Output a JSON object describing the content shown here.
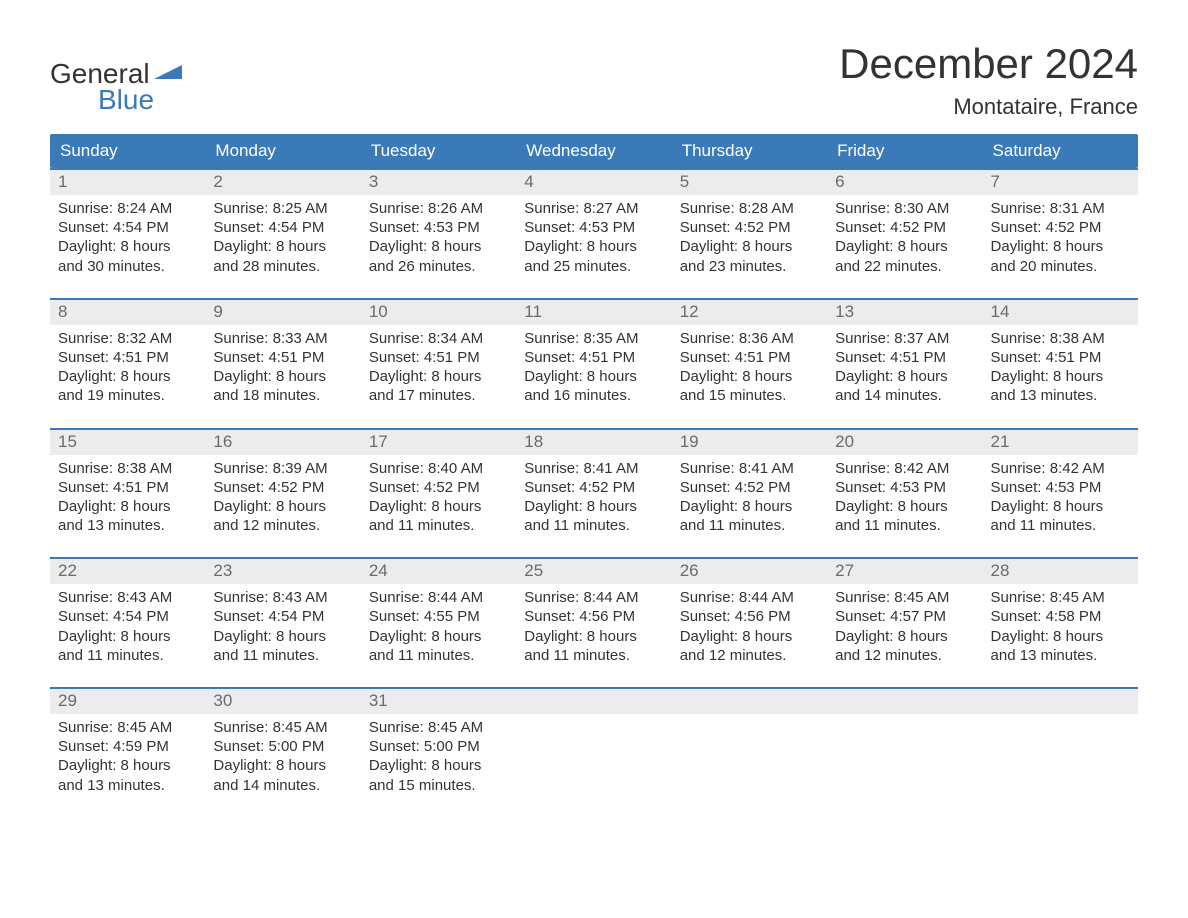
{
  "logo": {
    "text_general": "General",
    "text_blue": "Blue",
    "flag_color": "#3a7ab8"
  },
  "title": "December 2024",
  "location": "Montataire, France",
  "colors": {
    "header_bg": "#3a7ab8",
    "header_text": "#ffffff",
    "daynum_bg": "#ececec",
    "daynum_text": "#6b6b6b",
    "body_text": "#333333",
    "week_border": "#3a7ab8",
    "page_bg": "#ffffff"
  },
  "day_names": [
    "Sunday",
    "Monday",
    "Tuesday",
    "Wednesday",
    "Thursday",
    "Friday",
    "Saturday"
  ],
  "weeks": [
    [
      {
        "n": "1",
        "sunrise": "8:24 AM",
        "sunset": "4:54 PM",
        "daylight_h": "8",
        "daylight_m": "30"
      },
      {
        "n": "2",
        "sunrise": "8:25 AM",
        "sunset": "4:54 PM",
        "daylight_h": "8",
        "daylight_m": "28"
      },
      {
        "n": "3",
        "sunrise": "8:26 AM",
        "sunset": "4:53 PM",
        "daylight_h": "8",
        "daylight_m": "26"
      },
      {
        "n": "4",
        "sunrise": "8:27 AM",
        "sunset": "4:53 PM",
        "daylight_h": "8",
        "daylight_m": "25"
      },
      {
        "n": "5",
        "sunrise": "8:28 AM",
        "sunset": "4:52 PM",
        "daylight_h": "8",
        "daylight_m": "23"
      },
      {
        "n": "6",
        "sunrise": "8:30 AM",
        "sunset": "4:52 PM",
        "daylight_h": "8",
        "daylight_m": "22"
      },
      {
        "n": "7",
        "sunrise": "8:31 AM",
        "sunset": "4:52 PM",
        "daylight_h": "8",
        "daylight_m": "20"
      }
    ],
    [
      {
        "n": "8",
        "sunrise": "8:32 AM",
        "sunset": "4:51 PM",
        "daylight_h": "8",
        "daylight_m": "19"
      },
      {
        "n": "9",
        "sunrise": "8:33 AM",
        "sunset": "4:51 PM",
        "daylight_h": "8",
        "daylight_m": "18"
      },
      {
        "n": "10",
        "sunrise": "8:34 AM",
        "sunset": "4:51 PM",
        "daylight_h": "8",
        "daylight_m": "17"
      },
      {
        "n": "11",
        "sunrise": "8:35 AM",
        "sunset": "4:51 PM",
        "daylight_h": "8",
        "daylight_m": "16"
      },
      {
        "n": "12",
        "sunrise": "8:36 AM",
        "sunset": "4:51 PM",
        "daylight_h": "8",
        "daylight_m": "15"
      },
      {
        "n": "13",
        "sunrise": "8:37 AM",
        "sunset": "4:51 PM",
        "daylight_h": "8",
        "daylight_m": "14"
      },
      {
        "n": "14",
        "sunrise": "8:38 AM",
        "sunset": "4:51 PM",
        "daylight_h": "8",
        "daylight_m": "13"
      }
    ],
    [
      {
        "n": "15",
        "sunrise": "8:38 AM",
        "sunset": "4:51 PM",
        "daylight_h": "8",
        "daylight_m": "13"
      },
      {
        "n": "16",
        "sunrise": "8:39 AM",
        "sunset": "4:52 PM",
        "daylight_h": "8",
        "daylight_m": "12"
      },
      {
        "n": "17",
        "sunrise": "8:40 AM",
        "sunset": "4:52 PM",
        "daylight_h": "8",
        "daylight_m": "11"
      },
      {
        "n": "18",
        "sunrise": "8:41 AM",
        "sunset": "4:52 PM",
        "daylight_h": "8",
        "daylight_m": "11"
      },
      {
        "n": "19",
        "sunrise": "8:41 AM",
        "sunset": "4:52 PM",
        "daylight_h": "8",
        "daylight_m": "11"
      },
      {
        "n": "20",
        "sunrise": "8:42 AM",
        "sunset": "4:53 PM",
        "daylight_h": "8",
        "daylight_m": "11"
      },
      {
        "n": "21",
        "sunrise": "8:42 AM",
        "sunset": "4:53 PM",
        "daylight_h": "8",
        "daylight_m": "11"
      }
    ],
    [
      {
        "n": "22",
        "sunrise": "8:43 AM",
        "sunset": "4:54 PM",
        "daylight_h": "8",
        "daylight_m": "11"
      },
      {
        "n": "23",
        "sunrise": "8:43 AM",
        "sunset": "4:54 PM",
        "daylight_h": "8",
        "daylight_m": "11"
      },
      {
        "n": "24",
        "sunrise": "8:44 AM",
        "sunset": "4:55 PM",
        "daylight_h": "8",
        "daylight_m": "11"
      },
      {
        "n": "25",
        "sunrise": "8:44 AM",
        "sunset": "4:56 PM",
        "daylight_h": "8",
        "daylight_m": "11"
      },
      {
        "n": "26",
        "sunrise": "8:44 AM",
        "sunset": "4:56 PM",
        "daylight_h": "8",
        "daylight_m": "12"
      },
      {
        "n": "27",
        "sunrise": "8:45 AM",
        "sunset": "4:57 PM",
        "daylight_h": "8",
        "daylight_m": "12"
      },
      {
        "n": "28",
        "sunrise": "8:45 AM",
        "sunset": "4:58 PM",
        "daylight_h": "8",
        "daylight_m": "13"
      }
    ],
    [
      {
        "n": "29",
        "sunrise": "8:45 AM",
        "sunset": "4:59 PM",
        "daylight_h": "8",
        "daylight_m": "13"
      },
      {
        "n": "30",
        "sunrise": "8:45 AM",
        "sunset": "5:00 PM",
        "daylight_h": "8",
        "daylight_m": "14"
      },
      {
        "n": "31",
        "sunrise": "8:45 AM",
        "sunset": "5:00 PM",
        "daylight_h": "8",
        "daylight_m": "15"
      },
      null,
      null,
      null,
      null
    ]
  ],
  "labels": {
    "sunrise_prefix": "Sunrise: ",
    "sunset_prefix": "Sunset: ",
    "daylight_line1_prefix": "Daylight: ",
    "daylight_line1_suffix": " hours",
    "daylight_line2_prefix": "and ",
    "daylight_line2_suffix": " minutes."
  }
}
